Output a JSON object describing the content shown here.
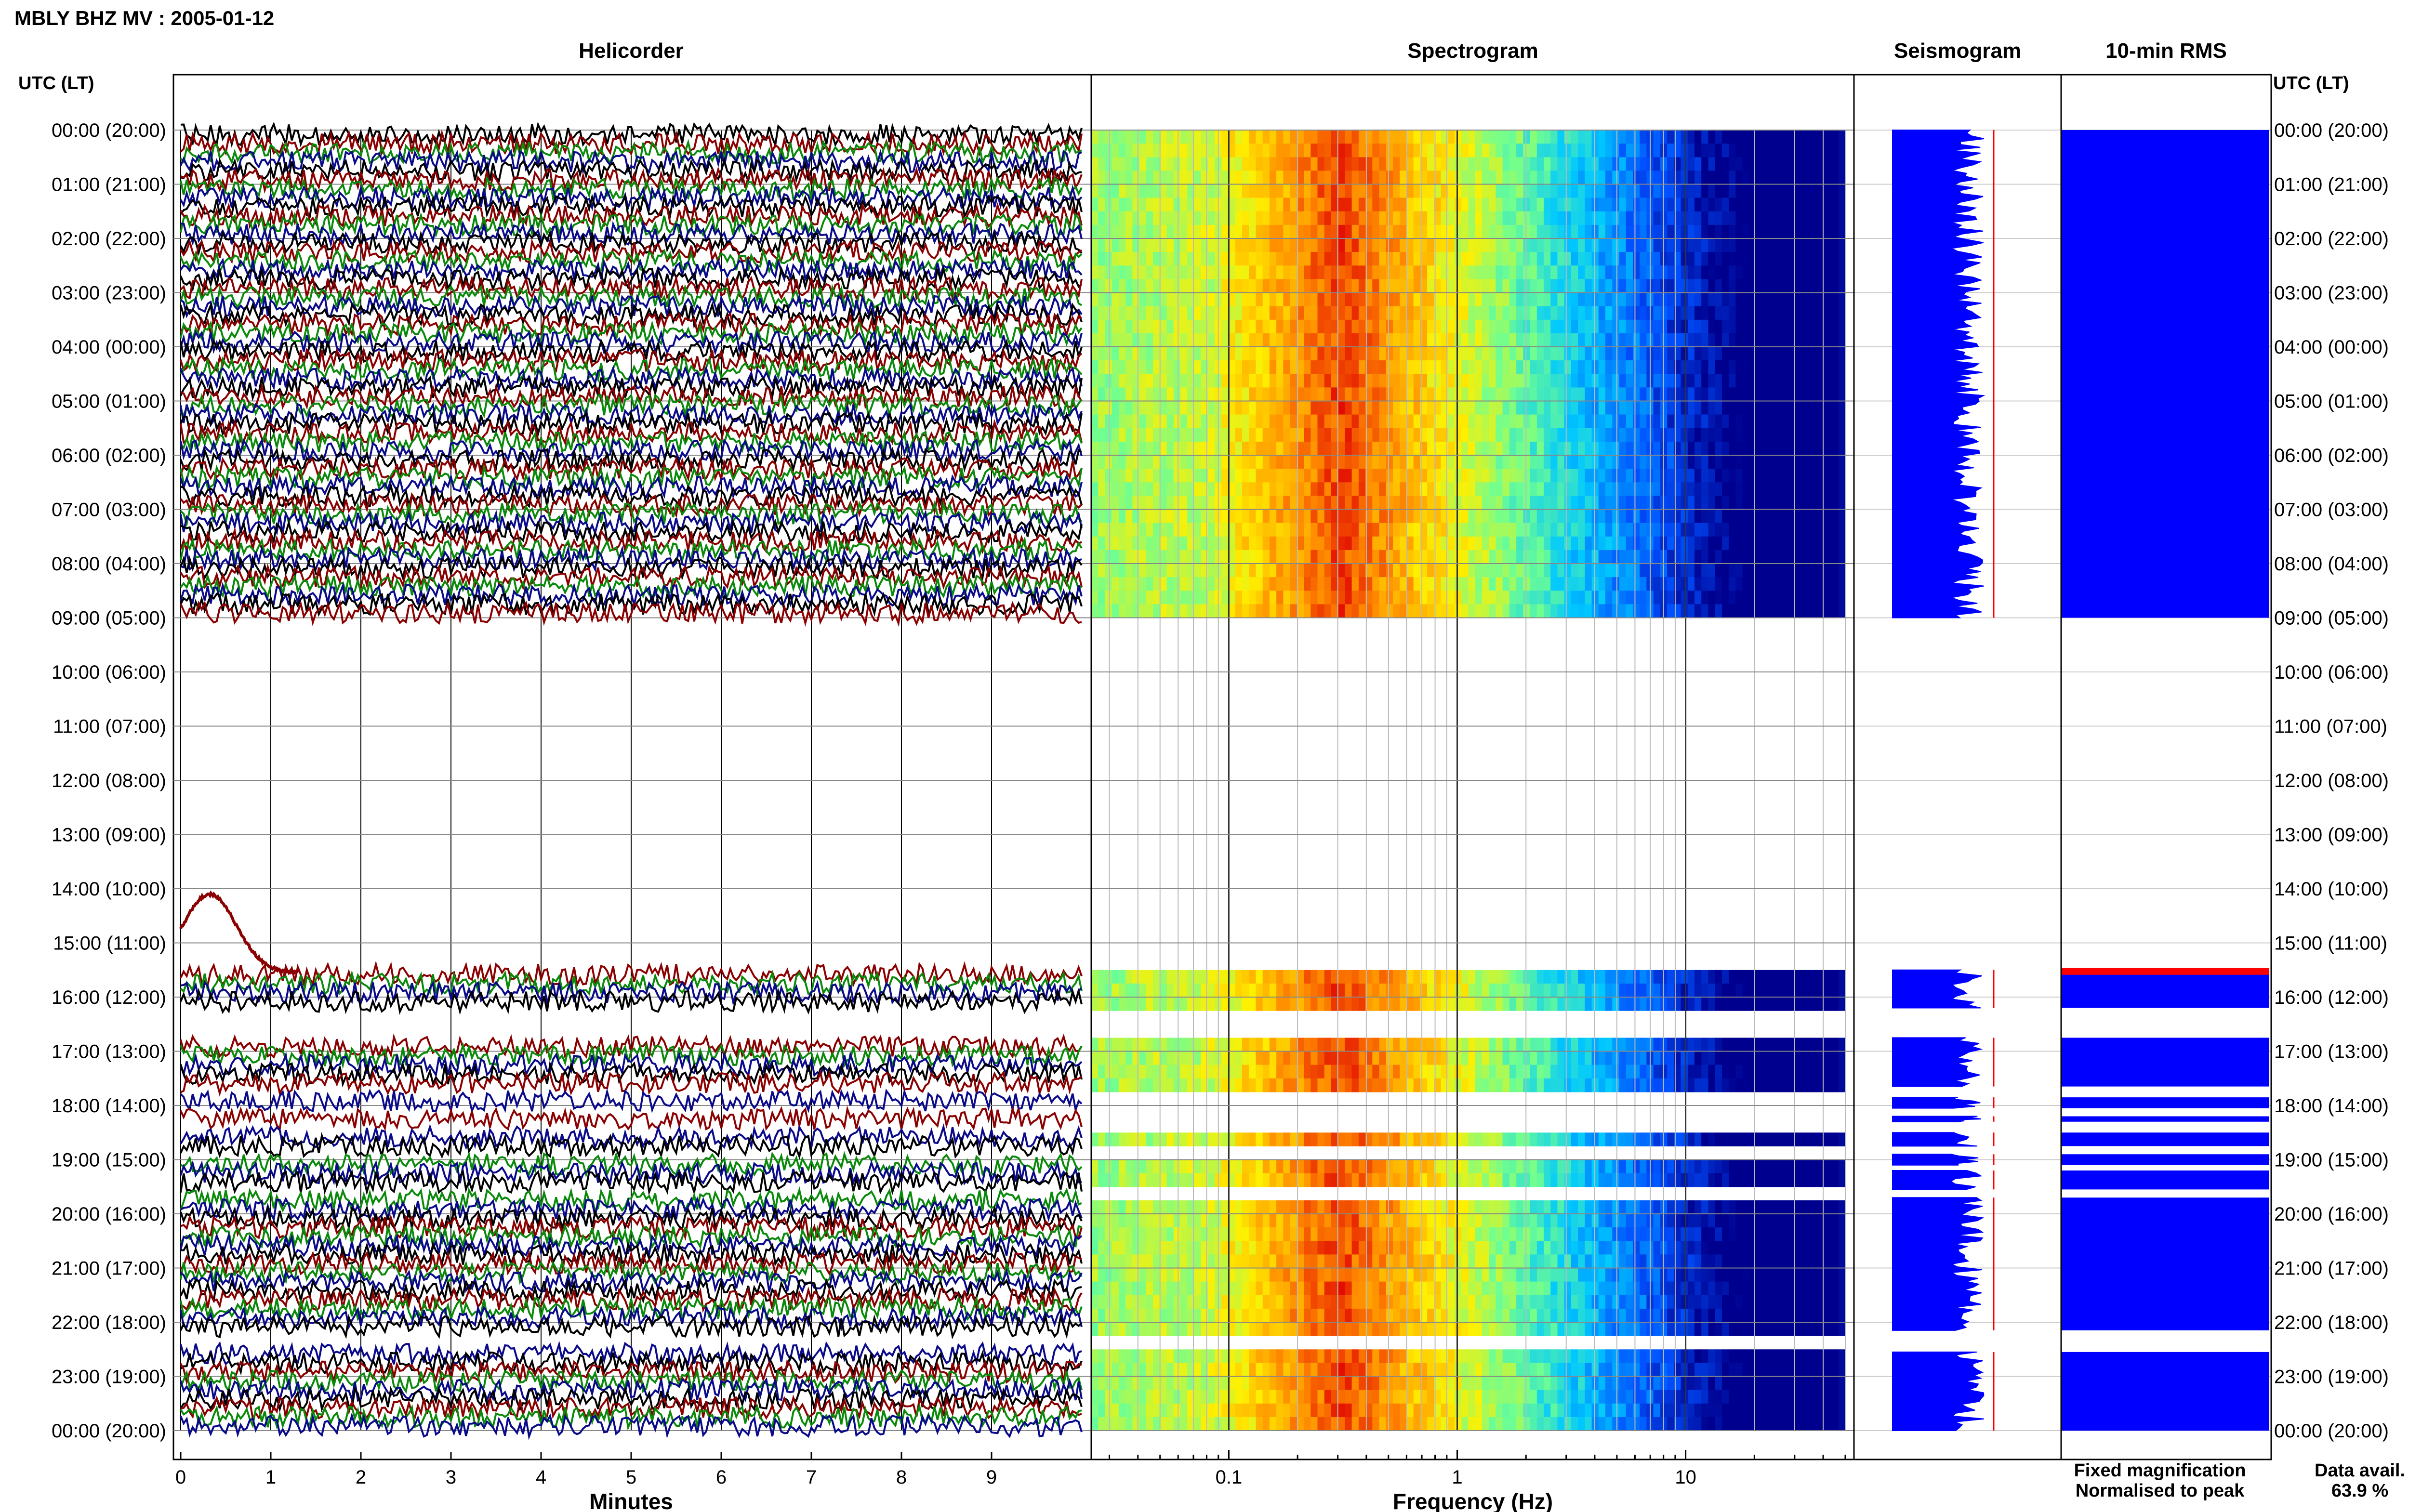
{
  "page_title": "MBLY BHZ MV : 2005-01-12",
  "panel_titles": {
    "helicorder": "Helicorder",
    "spectrogram": "Spectrogram",
    "seismogram": "Seismogram",
    "rms": "10-min RMS"
  },
  "axis_header_left": "UTC (LT)",
  "axis_header_right": "UTC (LT)",
  "legend": {
    "fixed": "Fixed magnification",
    "normalised": "Normalised to peak",
    "fixed_color": "#0000ff",
    "normalised_color": "#ff0000"
  },
  "data_availability": {
    "label": "Data avail.",
    "value": "63.9 %"
  },
  "colors": {
    "trace_cycle": [
      "#000000",
      "#8b0000",
      "#0a8a0a",
      "#0a0a8b"
    ],
    "rms_fill": "#0000ff",
    "seismogram_fill": "#0000ff",
    "peak_line": "#ff0000"
  },
  "chart_data": [
    {
      "type": "line",
      "panel": "helicorder",
      "xlabel": "Minutes",
      "x_ticks": [
        "0",
        "1",
        "2",
        "3",
        "4",
        "5",
        "6",
        "7",
        "8",
        "9"
      ],
      "xlim": [
        0,
        10
      ],
      "y_ticks": [
        "00:00 (20:00)",
        "01:00 (21:00)",
        "02:00 (22:00)",
        "03:00 (23:00)",
        "04:00 (00:00)",
        "05:00 (01:00)",
        "06:00 (02:00)",
        "07:00 (03:00)",
        "08:00 (04:00)",
        "09:00 (05:00)",
        "10:00 (06:00)",
        "11:00 (07:00)",
        "12:00 (08:00)",
        "13:00 (09:00)",
        "14:00 (10:00)",
        "15:00 (11:00)",
        "16:00 (12:00)",
        "17:00 (13:00)",
        "18:00 (14:00)",
        "19:00 (15:00)",
        "20:00 (16:00)",
        "21:00 (17:00)",
        "22:00 (18:00)",
        "23:00 (19:00)",
        "00:00 (20:00)"
      ],
      "lines_per_hour": 6,
      "grid": true,
      "data_segments_utc_hours": [
        [
          0,
          9
        ],
        [
          15.5,
          16.2
        ],
        [
          16.75,
          17.65
        ],
        [
          17.85,
          18.05
        ],
        [
          18.2,
          18.3
        ],
        [
          18.5,
          18.75
        ],
        [
          18.9,
          19.1
        ],
        [
          19.2,
          19.55
        ],
        [
          19.7,
          22.15
        ],
        [
          22.55,
          24
        ]
      ]
    },
    {
      "type": "heatmap",
      "panel": "spectrogram",
      "xlabel": "Frequency (Hz)",
      "x_scale": "log",
      "xlim": [
        0.025,
        50
      ],
      "x_ticks": [
        "0.1",
        "1",
        "10"
      ],
      "dominant_band_hz": [
        0.2,
        0.45
      ],
      "colormap": [
        "#00008f",
        "#0050ff",
        "#00c8ff",
        "#70ff90",
        "#fff000",
        "#ff8800",
        "#e00000"
      ],
      "grid": true
    },
    {
      "type": "area",
      "panel": "seismogram",
      "grid": true
    },
    {
      "type": "bar",
      "panel": "rms",
      "grid": true
    }
  ]
}
